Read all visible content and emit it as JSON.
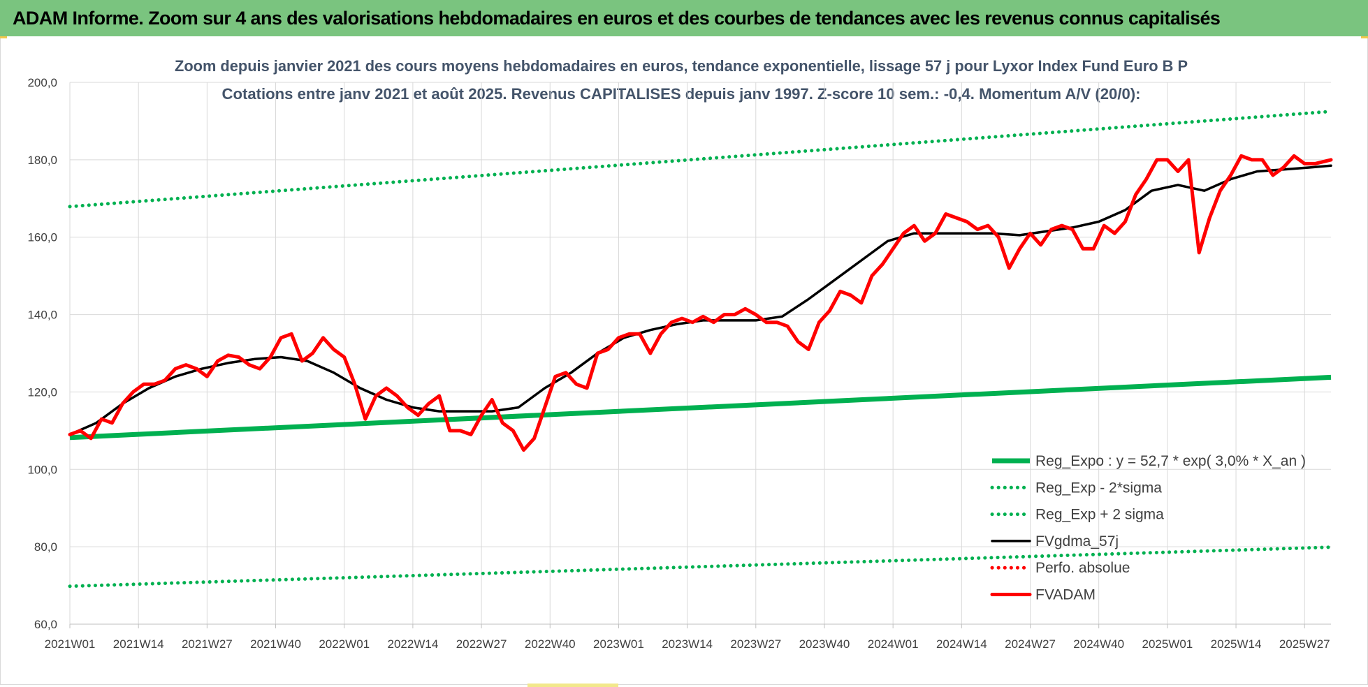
{
  "header": {
    "title": "ADAM Informe. Zoom sur 4 ans des valorisations hebdomadaires en euros et des courbes de tendances avec les revenus connus capitalisés"
  },
  "chart_data": {
    "type": "line",
    "title_line1": "Zoom depuis janvier 2021 des cours moyens hebdomadaires en euros, tendance exponentielle, lissage 57 j pour Lyxor Index Fund Euro B P",
    "title_line2": "Cotations entre janv 2021 et août 2025. Revenus CAPITALISES depuis janv 1997. Z-score 10 sem.: -0,4. Momentum A/V (20/0):",
    "xlabel": "",
    "ylabel": "",
    "ylim": [
      60,
      200
    ],
    "yticks": [
      "60,0",
      "80,0",
      "100,0",
      "120,0",
      "140,0",
      "160,0",
      "180,0",
      "200,0"
    ],
    "x_tick_labels": [
      "2021W01",
      "2021W14",
      "2021W27",
      "2021W40",
      "2022W01",
      "2022W14",
      "2022W27",
      "2022W40",
      "2023W01",
      "2023W14",
      "2023W27",
      "2023W40",
      "2024W01",
      "2024W14",
      "2024W27",
      "2024W40",
      "2025W01",
      "2025W14",
      "2025W27"
    ],
    "x_index_range": [
      0,
      239
    ],
    "grid": true,
    "legend_position": "bottom-right inside plot",
    "series": [
      {
        "name": "Reg_Expo : y = 52,7 * exp( 3,0% *  X_an )",
        "style": "solid-thick",
        "color": "#00b050",
        "x": [
          0,
          239
        ],
        "y": [
          108.2,
          123.8
        ]
      },
      {
        "name": "Reg_Exp - 2*sigma",
        "style": "dotted",
        "color": "#00b050",
        "x": [
          0,
          239
        ],
        "y": [
          69.8,
          79.9
        ]
      },
      {
        "name": "Reg_Exp + 2 sigma",
        "style": "dotted",
        "color": "#00b050",
        "x": [
          0,
          239
        ],
        "y": [
          167.9,
          192.5
        ]
      },
      {
        "name": "FVgdma_57j",
        "style": "solid",
        "color": "#000000",
        "x": [
          0,
          5,
          10,
          15,
          20,
          25,
          30,
          35,
          40,
          45,
          50,
          55,
          60,
          65,
          70,
          75,
          80,
          85,
          90,
          95,
          100,
          105,
          110,
          115,
          120,
          125,
          130,
          135,
          140,
          145,
          150,
          155,
          160,
          165,
          170,
          175,
          180,
          185,
          190,
          195,
          200,
          205,
          210,
          215,
          220,
          225,
          230,
          235,
          239
        ],
        "y": [
          109,
          112,
          117,
          121,
          124,
          126,
          127.5,
          128.5,
          129,
          128,
          125,
          121,
          118,
          116,
          115,
          115,
          115,
          116,
          121,
          125,
          130,
          134,
          136,
          137.5,
          138.5,
          138.5,
          138.5,
          139.5,
          144,
          149,
          154,
          159,
          161,
          161,
          161,
          161,
          160.5,
          161.5,
          162.5,
          164,
          167,
          172,
          173.5,
          172,
          175,
          177,
          177.5,
          178,
          178.5
        ]
      },
      {
        "name": "Perfo. absolue",
        "style": "dotted",
        "color": "#ff0000",
        "x": [],
        "y": []
      },
      {
        "name": "FVADAM",
        "style": "solid-thick",
        "color": "#ff0000",
        "x": [
          0,
          2,
          4,
          6,
          8,
          10,
          12,
          14,
          16,
          18,
          20,
          22,
          24,
          26,
          28,
          30,
          32,
          34,
          36,
          38,
          40,
          42,
          44,
          46,
          48,
          50,
          52,
          54,
          56,
          58,
          60,
          62,
          64,
          66,
          68,
          70,
          72,
          74,
          76,
          78,
          80,
          82,
          84,
          86,
          88,
          90,
          92,
          94,
          96,
          98,
          100,
          102,
          104,
          106,
          108,
          110,
          112,
          114,
          116,
          118,
          120,
          122,
          124,
          126,
          128,
          130,
          132,
          134,
          136,
          138,
          140,
          142,
          144,
          146,
          148,
          150,
          152,
          154,
          156,
          158,
          160,
          162,
          164,
          166,
          168,
          170,
          172,
          174,
          176,
          178,
          180,
          182,
          184,
          186,
          188,
          190,
          192,
          194,
          196,
          198,
          200,
          202,
          204,
          206,
          208,
          210,
          212,
          214,
          216,
          218,
          220,
          222,
          224,
          226,
          228,
          230,
          232,
          234,
          236,
          239
        ],
        "y": [
          109,
          110,
          108,
          113,
          112,
          117,
          120,
          122,
          122,
          123,
          126,
          127,
          126,
          124,
          128,
          129.5,
          129,
          127,
          126,
          129,
          134,
          135,
          128,
          130,
          134,
          131,
          129,
          122,
          113,
          119,
          121,
          119,
          116,
          114,
          117,
          119,
          110,
          110,
          109,
          114,
          118,
          112,
          110,
          105,
          108,
          116,
          124,
          125,
          122,
          121,
          130,
          131,
          134,
          135,
          135,
          130,
          135,
          138,
          139,
          138,
          139.5,
          138,
          140,
          140,
          141.5,
          140,
          138,
          138,
          137,
          133,
          131,
          138,
          141,
          146,
          145,
          143,
          150,
          153,
          157,
          161,
          163,
          159,
          161,
          166,
          165,
          164,
          162,
          163,
          160,
          152,
          157,
          161,
          158,
          162,
          163,
          162,
          157,
          157,
          163,
          161,
          164,
          171,
          175,
          180,
          180,
          177,
          180,
          156,
          165,
          172,
          176,
          181,
          180,
          180,
          176,
          178,
          181,
          179,
          179,
          180
        ]
      }
    ]
  }
}
